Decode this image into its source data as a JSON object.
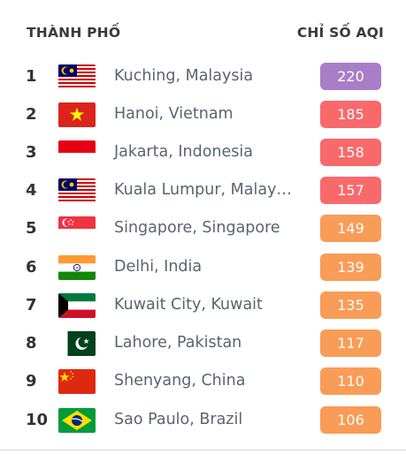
{
  "header": {
    "city": "THÀNH PHỐ",
    "aqi": "CHỈ SỐ AQI"
  },
  "rows": [
    {
      "rank": "1",
      "city": "Kuching, Malaysia",
      "aqi": "220",
      "color": "#a97ec8",
      "flag": "malaysia-flag-icon"
    },
    {
      "rank": "2",
      "city": "Hanoi, Vietnam",
      "aqi": "185",
      "color": "#f8696b",
      "flag": "vietnam-flag-icon"
    },
    {
      "rank": "3",
      "city": "Jakarta, Indonesia",
      "aqi": "158",
      "color": "#f8696b",
      "flag": "indonesia-flag-icon"
    },
    {
      "rank": "4",
      "city": "Kuala Lumpur, Malay…",
      "aqi": "157",
      "color": "#f8696b",
      "flag": "malaysia-flag-icon"
    },
    {
      "rank": "5",
      "city": "Singapore, Singapore",
      "aqi": "149",
      "color": "#f99c57",
      "flag": "singapore-flag-icon"
    },
    {
      "rank": "6",
      "city": "Delhi, India",
      "aqi": "139",
      "color": "#f99c57",
      "flag": "india-flag-icon"
    },
    {
      "rank": "7",
      "city": "Kuwait City, Kuwait",
      "aqi": "135",
      "color": "#f99c57",
      "flag": "kuwait-flag-icon"
    },
    {
      "rank": "8",
      "city": "Lahore, Pakistan",
      "aqi": "117",
      "color": "#f99c57",
      "flag": "pakistan-flag-icon"
    },
    {
      "rank": "9",
      "city": "Shenyang, China",
      "aqi": "110",
      "color": "#f99c57",
      "flag": "china-flag-icon"
    },
    {
      "rank": "10",
      "city": "Sao Paulo, Brazil",
      "aqi": "106",
      "color": "#f99c57",
      "flag": "brazil-flag-icon"
    }
  ]
}
